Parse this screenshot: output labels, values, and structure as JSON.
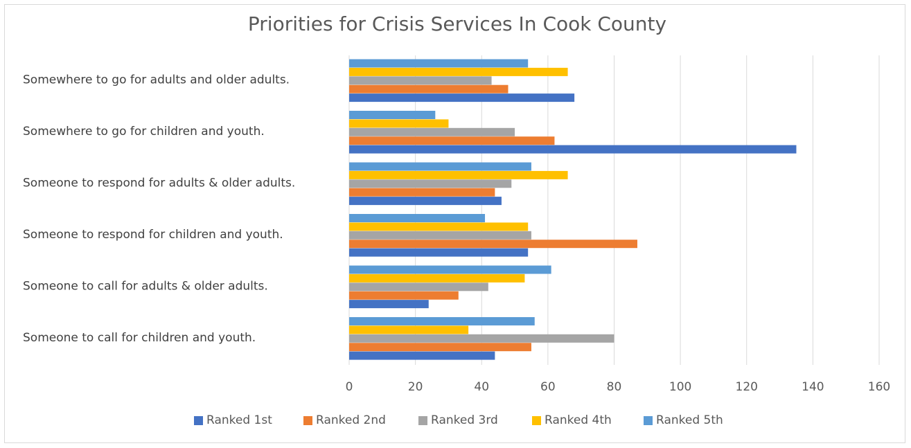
{
  "chart_data": {
    "type": "bar",
    "orientation": "horizontal",
    "title": "Priorities for Crisis Services In Cook County",
    "xlabel": "",
    "ylabel": "",
    "xlim": [
      0,
      160
    ],
    "xticks": [
      0,
      20,
      40,
      60,
      80,
      100,
      120,
      140,
      160
    ],
    "grid": "vertical",
    "legend_position": "bottom",
    "categories": [
      "Somewhere to go for adults and older adults.",
      "Somewhere to go for children and youth.",
      "Someone to respond for adults & older adults.",
      "Someone to respond for children and youth.",
      "Someone to call for adults & older adults.",
      "Someone to call for children and youth."
    ],
    "series": [
      {
        "name": "Ranked 1st",
        "color": "#4472c4",
        "values": [
          68,
          135,
          46,
          54,
          24,
          44
        ]
      },
      {
        "name": "Ranked 2nd",
        "color": "#ed7d31",
        "values": [
          48,
          62,
          44,
          87,
          33,
          55
        ]
      },
      {
        "name": "Ranked 3rd",
        "color": "#a5a5a5",
        "values": [
          43,
          50,
          49,
          55,
          42,
          80
        ]
      },
      {
        "name": "Ranked 4th",
        "color": "#ffc000",
        "values": [
          66,
          30,
          66,
          54,
          53,
          36
        ]
      },
      {
        "name": "Ranked 5th",
        "color": "#5b9bd5",
        "values": [
          54,
          26,
          55,
          41,
          61,
          56
        ]
      }
    ]
  }
}
